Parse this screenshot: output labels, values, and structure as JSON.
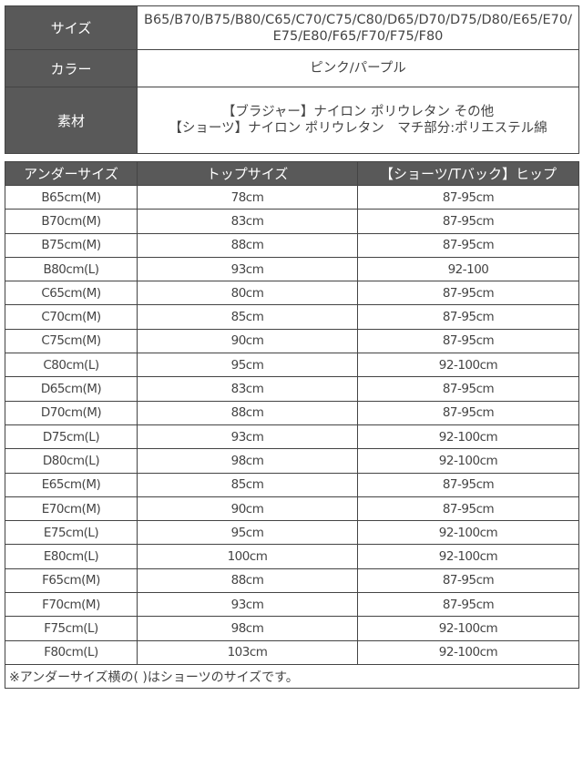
{
  "spec": [
    {
      "label": "サイズ",
      "value": "B65/B70/B75/B80/C65/C70/C75/C80/D65/D70/D75/D80/E65/E70/E75/E80/F65/F70/F75/F80"
    },
    {
      "label": "カラー",
      "value": "ピンク/パープル"
    },
    {
      "label": "素材",
      "lines": [
        "【ブラジャー】ナイロン ポリウレタン その他",
        "【ショーツ】ナイロン ポリウレタン　マチ部分:ポリエステル綿"
      ]
    }
  ],
  "size_table": {
    "headers": [
      "アンダーサイズ",
      "トップサイズ",
      "【ショーツ/Tバック】ヒップ"
    ],
    "rows": [
      [
        "B65cm(M)",
        "78cm",
        "87-95cm"
      ],
      [
        "B70cm(M)",
        "83cm",
        "87-95cm"
      ],
      [
        "B75cm(M)",
        "88cm",
        "87-95cm"
      ],
      [
        "B80cm(L)",
        "93cm",
        "92-100"
      ],
      [
        "C65cm(M)",
        "80cm",
        "87-95cm"
      ],
      [
        "C70cm(M)",
        "85cm",
        "87-95cm"
      ],
      [
        "C75cm(M)",
        "90cm",
        "87-95cm"
      ],
      [
        "C80cm(L)",
        "95cm",
        "92-100cm"
      ],
      [
        "D65cm(M)",
        "83cm",
        "87-95cm"
      ],
      [
        "D70cm(M)",
        "88cm",
        "87-95cm"
      ],
      [
        "D75cm(L)",
        "93cm",
        "92-100cm"
      ],
      [
        "D80cm(L)",
        "98cm",
        "92-100cm"
      ],
      [
        "E65cm(M)",
        "85cm",
        "87-95cm"
      ],
      [
        "E70cm(M)",
        "90cm",
        "87-95cm"
      ],
      [
        "E75cm(L)",
        "95cm",
        "92-100cm"
      ],
      [
        "E80cm(L)",
        "100cm",
        "92-100cm"
      ],
      [
        "F65cm(M)",
        "88cm",
        "87-95cm"
      ],
      [
        "F70cm(M)",
        "93cm",
        "87-95cm"
      ],
      [
        "F75cm(L)",
        "98cm",
        "92-100cm"
      ],
      [
        "F80cm(L)",
        "103cm",
        "92-100cm"
      ]
    ],
    "note": "※アンダーサイズ横の( )はショーツのサイズです。"
  },
  "colors": {
    "header_bg": "#595959",
    "border": "#444444"
  }
}
